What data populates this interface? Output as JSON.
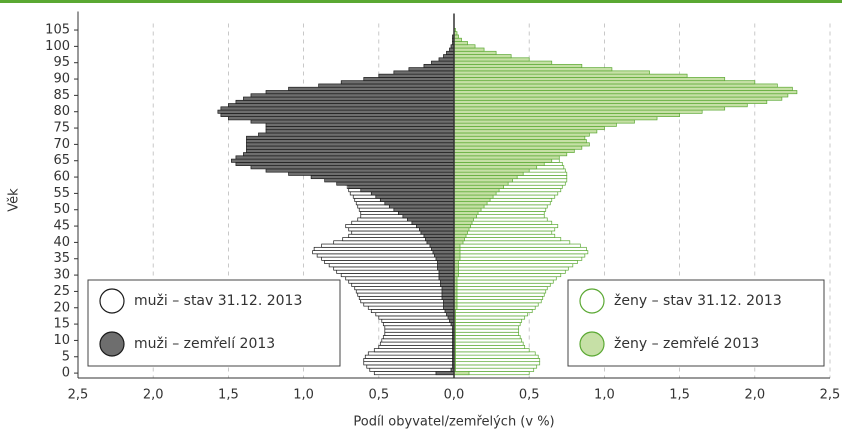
{
  "chart_data": {
    "type": "pyramid",
    "xlabel": "Podíl obyvatel/zemřelých (v %)",
    "ylabel": "Věk",
    "y": [
      0,
      1,
      2,
      3,
      4,
      5,
      6,
      7,
      8,
      9,
      10,
      11,
      12,
      13,
      14,
      15,
      16,
      17,
      18,
      19,
      20,
      21,
      22,
      23,
      24,
      25,
      26,
      27,
      28,
      29,
      30,
      31,
      32,
      33,
      34,
      35,
      36,
      37,
      38,
      39,
      40,
      41,
      42,
      43,
      44,
      45,
      46,
      47,
      48,
      49,
      50,
      51,
      52,
      53,
      54,
      55,
      56,
      57,
      58,
      59,
      60,
      61,
      62,
      63,
      64,
      65,
      66,
      67,
      68,
      69,
      70,
      71,
      72,
      73,
      74,
      75,
      76,
      77,
      78,
      79,
      80,
      81,
      82,
      83,
      84,
      85,
      86,
      87,
      88,
      89,
      90,
      91,
      92,
      93,
      94,
      95,
      96,
      97,
      98,
      99,
      100,
      101,
      102,
      103,
      104,
      105
    ],
    "series": [
      {
        "name": "muži – stav 31.12. 2013",
        "side": "left",
        "color": "#ffffff",
        "edgecolor": "#1a1a1a",
        "values": [
          0.53,
          0.56,
          0.58,
          0.6,
          0.6,
          0.59,
          0.57,
          0.53,
          0.5,
          0.49,
          0.48,
          0.47,
          0.46,
          0.46,
          0.46,
          0.47,
          0.48,
          0.5,
          0.52,
          0.55,
          0.57,
          0.6,
          0.62,
          0.63,
          0.64,
          0.65,
          0.66,
          0.68,
          0.7,
          0.72,
          0.75,
          0.78,
          0.8,
          0.83,
          0.86,
          0.88,
          0.91,
          0.94,
          0.93,
          0.88,
          0.8,
          0.74,
          0.7,
          0.68,
          0.7,
          0.72,
          0.68,
          0.64,
          0.62,
          0.62,
          0.63,
          0.64,
          0.65,
          0.66,
          0.67,
          0.69,
          0.7,
          0.71,
          0.72,
          0.72,
          0.71,
          0.7,
          0.68,
          0.66,
          0.64,
          0.62,
          0.6,
          0.56,
          0.52,
          0.48,
          0.45,
          0.42,
          0.38,
          0.34,
          0.31,
          0.28,
          0.26,
          0.24,
          0.22,
          0.2,
          0.18,
          0.16,
          0.14,
          0.12,
          0.1,
          0.08,
          0.07,
          0.06,
          0.05,
          0.04,
          0.03,
          0.02,
          0.02,
          0.01,
          0.01,
          0.01,
          0.01,
          0,
          0,
          0,
          0,
          0,
          0,
          0,
          0,
          0
        ]
      },
      {
        "name": "muži – zemřelí 2013",
        "side": "left",
        "color": "#6e6e6e",
        "edgecolor": "#1a1a1a",
        "values": [
          0.12,
          0.02,
          0.01,
          0.01,
          0.01,
          0.01,
          0.01,
          0.01,
          0.01,
          0.01,
          0.01,
          0.01,
          0.01,
          0.01,
          0.01,
          0.02,
          0.03,
          0.04,
          0.05,
          0.06,
          0.07,
          0.07,
          0.07,
          0.08,
          0.08,
          0.08,
          0.08,
          0.09,
          0.09,
          0.1,
          0.1,
          0.1,
          0.11,
          0.11,
          0.11,
          0.12,
          0.13,
          0.14,
          0.15,
          0.16,
          0.18,
          0.19,
          0.2,
          0.22,
          0.23,
          0.25,
          0.28,
          0.31,
          0.34,
          0.37,
          0.4,
          0.43,
          0.46,
          0.49,
          0.52,
          0.55,
          0.62,
          0.7,
          0.78,
          0.86,
          0.95,
          1.1,
          1.25,
          1.35,
          1.45,
          1.48,
          1.45,
          1.4,
          1.38,
          1.38,
          1.38,
          1.38,
          1.38,
          1.3,
          1.25,
          1.25,
          1.25,
          1.35,
          1.5,
          1.55,
          1.57,
          1.55,
          1.5,
          1.45,
          1.4,
          1.35,
          1.25,
          1.1,
          0.9,
          0.75,
          0.6,
          0.5,
          0.4,
          0.3,
          0.2,
          0.15,
          0.1,
          0.07,
          0.05,
          0.03,
          0.02,
          0.01,
          0.01,
          0.01,
          0,
          0
        ]
      },
      {
        "name": "ženy – stav 31.12. 2013",
        "side": "right",
        "color": "#ffffff",
        "edgecolor": "#5aa832",
        "values": [
          0.5,
          0.53,
          0.55,
          0.57,
          0.57,
          0.56,
          0.54,
          0.5,
          0.47,
          0.46,
          0.45,
          0.44,
          0.43,
          0.43,
          0.43,
          0.44,
          0.45,
          0.47,
          0.49,
          0.52,
          0.54,
          0.56,
          0.58,
          0.59,
          0.6,
          0.61,
          0.62,
          0.64,
          0.66,
          0.68,
          0.71,
          0.74,
          0.76,
          0.79,
          0.82,
          0.85,
          0.87,
          0.89,
          0.88,
          0.84,
          0.77,
          0.71,
          0.67,
          0.65,
          0.67,
          0.69,
          0.65,
          0.62,
          0.6,
          0.6,
          0.61,
          0.62,
          0.64,
          0.65,
          0.67,
          0.69,
          0.71,
          0.72,
          0.74,
          0.75,
          0.75,
          0.75,
          0.74,
          0.73,
          0.72,
          0.7,
          0.68,
          0.65,
          0.61,
          0.58,
          0.55,
          0.52,
          0.48,
          0.45,
          0.42,
          0.39,
          0.37,
          0.35,
          0.33,
          0.31,
          0.29,
          0.27,
          0.25,
          0.23,
          0.21,
          0.19,
          0.17,
          0.15,
          0.13,
          0.11,
          0.09,
          0.07,
          0.06,
          0.05,
          0.04,
          0.03,
          0.02,
          0.02,
          0.01,
          0.01,
          0.01,
          0,
          0,
          0,
          0,
          0
        ]
      },
      {
        "name": "ženy – zemřelé 2013",
        "side": "right",
        "color": "#c6e0a6",
        "edgecolor": "#5aa832",
        "values": [
          0.1,
          0.01,
          0.01,
          0.01,
          0.01,
          0.01,
          0.01,
          0.01,
          0.01,
          0.01,
          0.01,
          0.01,
          0.01,
          0.01,
          0.01,
          0.01,
          0.01,
          0.01,
          0.01,
          0.01,
          0.02,
          0.02,
          0.02,
          0.02,
          0.02,
          0.02,
          0.02,
          0.02,
          0.02,
          0.02,
          0.03,
          0.03,
          0.03,
          0.03,
          0.03,
          0.04,
          0.04,
          0.04,
          0.04,
          0.04,
          0.06,
          0.07,
          0.08,
          0.09,
          0.1,
          0.11,
          0.12,
          0.13,
          0.15,
          0.16,
          0.18,
          0.2,
          0.22,
          0.24,
          0.26,
          0.28,
          0.3,
          0.33,
          0.36,
          0.39,
          0.42,
          0.46,
          0.5,
          0.55,
          0.6,
          0.65,
          0.7,
          0.75,
          0.8,
          0.85,
          0.9,
          0.88,
          0.87,
          0.9,
          0.95,
          1.0,
          1.08,
          1.2,
          1.35,
          1.5,
          1.65,
          1.8,
          1.95,
          2.08,
          2.18,
          2.22,
          2.28,
          2.25,
          2.15,
          2.0,
          1.8,
          1.55,
          1.3,
          1.05,
          0.85,
          0.65,
          0.5,
          0.38,
          0.28,
          0.2,
          0.14,
          0.09,
          0.05,
          0.03,
          0.02,
          0.01
        ]
      }
    ],
    "xlim": [
      -2.5,
      2.5
    ],
    "xticks": [
      {
        "value": -2.5,
        "label": "2,5"
      },
      {
        "value": -2.0,
        "label": "2,0"
      },
      {
        "value": -1.5,
        "label": "1,5"
      },
      {
        "value": -1.0,
        "label": "1,0"
      },
      {
        "value": -0.5,
        "label": "0,5"
      },
      {
        "value": 0,
        "label": "0,0"
      },
      {
        "value": 0.5,
        "label": "0,5"
      },
      {
        "value": 1.0,
        "label": "1,0"
      },
      {
        "value": 1.5,
        "label": "1,5"
      },
      {
        "value": 2.0,
        "label": "2,0"
      },
      {
        "value": 2.5,
        "label": "2,5"
      }
    ],
    "ylim": [
      -1.5,
      107
    ],
    "yticks": [
      0,
      5,
      10,
      15,
      20,
      25,
      30,
      35,
      40,
      45,
      50,
      55,
      60,
      65,
      70,
      75,
      80,
      85,
      90,
      95,
      100,
      105
    ],
    "grid": true
  }
}
